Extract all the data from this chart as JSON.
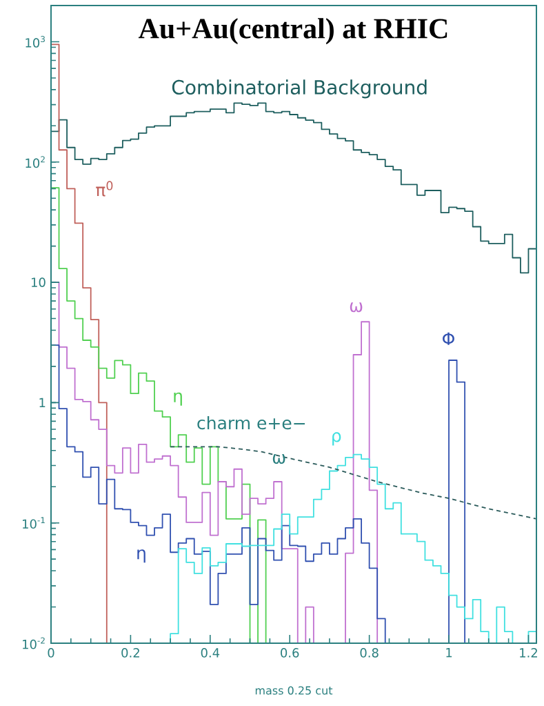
{
  "chart_data": {
    "type": "histogram",
    "title": "Au+Au(central) at RHIC",
    "xlabel": "mass 0.25 cut",
    "log": "y",
    "xlim": [
      0,
      1.22
    ],
    "ylim": [
      0.01,
      2000
    ],
    "xticks": [
      0,
      0.2,
      0.4,
      0.6,
      0.8,
      1,
      1.2
    ],
    "yticks": [
      {
        "value": 0.01,
        "label": "10$^{-2}$"
      },
      {
        "value": 0.1,
        "label": "10$^{-1}$"
      },
      1,
      10,
      {
        "value": 100,
        "label": "10$^{2}$"
      },
      {
        "value": 1000,
        "label": "10$^{3}$"
      }
    ],
    "bins": [
      0,
      0.02,
      0.04,
      0.06,
      0.08,
      0.1,
      0.12,
      0.14,
      0.16,
      0.18,
      0.2,
      0.22,
      0.24,
      0.26,
      0.28,
      0.3,
      0.32,
      0.34,
      0.36,
      0.38,
      0.4,
      0.42,
      0.44,
      0.46,
      0.48,
      0.5,
      0.52,
      0.54,
      0.56,
      0.58,
      0.6,
      0.62,
      0.64,
      0.66,
      0.68,
      0.7,
      0.72,
      0.74,
      0.76,
      0.78,
      0.8,
      0.82,
      0.84,
      0.86,
      0.88,
      0.9,
      0.92,
      0.94,
      0.96,
      0.98,
      1,
      1.02,
      1.04,
      1.06,
      1.08,
      1.1,
      1.12,
      1.14,
      1.16,
      1.18,
      1.2,
      1.22
    ],
    "series": [
      {
        "name": "Combinatorial Background",
        "color": "#1d5e5e",
        "values": [
          180,
          224,
          132,
          105,
          96,
          107,
          105,
          117,
          132,
          151,
          155,
          174,
          195,
          200,
          200,
          240,
          240,
          257,
          263,
          263,
          275,
          275,
          257,
          309,
          302,
          295,
          309,
          263,
          257,
          263,
          248,
          233,
          223,
          213,
          187,
          171,
          157,
          150,
          126,
          120,
          115,
          105,
          92,
          86,
          65,
          65,
          53,
          58,
          58,
          38,
          42,
          41,
          39,
          29,
          22,
          21,
          21,
          25,
          16,
          12,
          19
        ]
      },
      {
        "name": "π$^{0}$",
        "color": "#c0605a",
        "bins": [
          0,
          0.02,
          0.04,
          0.06,
          0.08,
          0.1,
          0.12,
          0.14
        ],
        "values": [
          950,
          126,
          60,
          31,
          9,
          4.9,
          1.0
        ]
      },
      {
        "name": "η",
        "color": "#50d050",
        "bins": [
          0,
          0.02,
          0.04,
          0.06,
          0.08,
          0.1,
          0.12,
          0.14,
          0.16,
          0.18,
          0.2,
          0.22,
          0.24,
          0.26,
          0.28,
          0.3,
          0.32,
          0.34,
          0.36,
          0.38,
          0.4,
          0.42,
          0.44,
          0.46,
          0.48,
          0.5,
          0.52,
          0.54
        ],
        "values": [
          61,
          13,
          7.0,
          5.0,
          3.3,
          2.9,
          1.93,
          1.6,
          2.24,
          2.06,
          1.19,
          1.76,
          1.51,
          0.85,
          0.76,
          0.43,
          0.54,
          0.32,
          0.42,
          0.21,
          0.43,
          0.22,
          0.108,
          0.108,
          0.21,
          null,
          0.106
        ]
      },
      {
        "name": "ω",
        "color": "#c070d0",
        "bins": [
          0,
          0.02,
          0.04,
          0.06,
          0.08,
          0.1,
          0.12,
          0.14,
          0.16,
          0.18,
          0.2,
          0.22,
          0.24,
          0.26,
          0.28,
          0.3,
          0.32,
          0.34,
          0.36,
          0.38,
          0.4,
          0.42,
          0.44,
          0.46,
          0.48,
          0.5,
          0.52,
          0.54,
          0.56,
          0.58,
          0.6,
          0.62,
          0.64,
          0.66,
          0.68,
          0.7,
          0.72,
          0.74,
          0.76,
          0.78,
          0.8,
          0.82
        ],
        "values": [
          10,
          2.9,
          1.93,
          1.06,
          1.02,
          0.72,
          0.6,
          0.3,
          0.26,
          0.42,
          0.26,
          0.45,
          0.32,
          0.34,
          0.36,
          0.3,
          0.164,
          0.101,
          0.101,
          0.179,
          0.079,
          0.22,
          0.2,
          0.28,
          0.118,
          0.16,
          0.144,
          0.16,
          0.22,
          0.061,
          0.061,
          null,
          0.02,
          null,
          null,
          null,
          null,
          0.056,
          2.5,
          4.7,
          0.187
        ]
      },
      {
        "name": "η",
        "color": "#3050b0",
        "bins": [
          0,
          0.02,
          0.04,
          0.06,
          0.08,
          0.1,
          0.12,
          0.14,
          0.16,
          0.18,
          0.2,
          0.22,
          0.24,
          0.26,
          0.28,
          0.3,
          0.32,
          0.34,
          0.36,
          0.38,
          0.4,
          0.42,
          0.44,
          0.46,
          0.48,
          0.5,
          0.52,
          0.54,
          0.56,
          0.58,
          0.6,
          0.62,
          0.64,
          0.66,
          0.68,
          0.7,
          0.72,
          0.74,
          0.76,
          0.78,
          0.8,
          0.82,
          0.84
        ],
        "values": [
          3.0,
          0.89,
          0.43,
          0.39,
          0.24,
          0.29,
          0.144,
          0.23,
          0.131,
          0.129,
          0.101,
          0.095,
          0.079,
          0.091,
          0.118,
          0.057,
          0.068,
          0.074,
          0.055,
          0.058,
          0.021,
          0.038,
          0.055,
          0.055,
          0.091,
          0.021,
          0.074,
          0.059,
          0.049,
          0.095,
          0.065,
          0.064,
          0.048,
          0.055,
          0.068,
          0.055,
          0.074,
          0.091,
          0.108,
          0.068,
          0.042,
          0.016
        ]
      },
      {
        "name": "Φ",
        "color": "#3050b0",
        "bins": [
          1,
          1.02,
          1.04
        ],
        "values": [
          2.25,
          1.48
        ]
      },
      {
        "name": "ρ",
        "color": "#40e0e0",
        "bins": [
          0.3,
          0.32,
          0.34,
          0.36,
          0.38,
          0.4,
          0.42,
          0.44,
          0.46,
          0.48,
          0.5,
          0.52,
          0.54,
          0.56,
          0.58,
          0.6,
          0.62,
          0.64,
          0.66,
          0.68,
          0.7,
          0.72,
          0.74,
          0.76,
          0.78,
          0.8,
          0.82,
          0.84,
          0.86,
          0.88,
          0.9,
          0.92,
          0.94,
          0.96,
          0.98,
          1,
          1.02,
          1.04,
          1.06,
          1.08,
          1.1,
          1.12,
          1.14,
          1.16,
          1.18,
          1.2,
          1.22
        ],
        "values": [
          0.012,
          0.061,
          0.047,
          0.038,
          0.062,
          0.044,
          0.047,
          0.067,
          0.067,
          0.064,
          0.065,
          0.065,
          0.065,
          0.089,
          0.118,
          0.081,
          0.112,
          0.112,
          0.157,
          0.19,
          0.27,
          0.3,
          0.35,
          0.37,
          0.34,
          0.29,
          0.21,
          0.131,
          0.147,
          0.081,
          0.081,
          0.07,
          0.049,
          0.044,
          0.038,
          0.025,
          0.02,
          0.016,
          0.023,
          0.0125,
          null,
          0.02,
          0.0125,
          null,
          null,
          0.0125
        ]
      },
      {
        "name": "charm e+e−",
        "type": "line",
        "line_style": "dashed",
        "color": "#2a5a5a",
        "x": [
          0.3,
          0.42,
          0.48,
          0.53,
          0.59,
          0.7,
          0.82,
          0.93,
          1.0,
          1.1,
          1.22
        ],
        "values": [
          0.43,
          0.43,
          0.41,
          0.39,
          0.35,
          0.29,
          0.22,
          0.178,
          0.16,
          0.131,
          0.108
        ]
      }
    ],
    "annotations": [
      "ω"
    ]
  }
}
